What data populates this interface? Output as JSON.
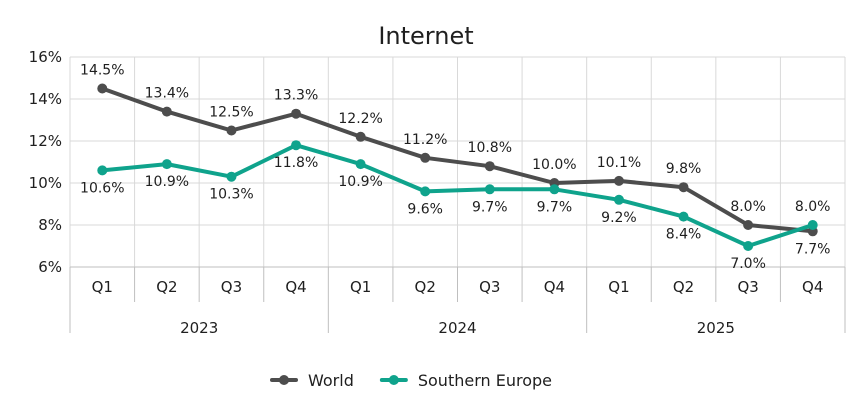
{
  "chart_data": {
    "type": "line",
    "title": "Internet",
    "years": [
      "2023",
      "2024",
      "2025"
    ],
    "categories": [
      "Q1",
      "Q2",
      "Q3",
      "Q4",
      "Q1",
      "Q2",
      "Q3",
      "Q4",
      "Q1",
      "Q2",
      "Q3",
      "Q4"
    ],
    "ylim": [
      6,
      16
    ],
    "yticks": [
      6,
      8,
      10,
      12,
      14,
      16
    ],
    "ytick_labels": [
      "6%",
      "8%",
      "10%",
      "12%",
      "14%",
      "16%"
    ],
    "grid": true,
    "legend_position": "bottom",
    "series": [
      {
        "name": "World",
        "color": "#4d4d4d",
        "values": [
          14.5,
          13.4,
          12.5,
          13.3,
          12.2,
          11.2,
          10.8,
          10.0,
          10.1,
          9.8,
          8.0,
          7.7
        ],
        "labels": [
          "14.5%",
          "13.4%",
          "12.5%",
          "13.3%",
          "12.2%",
          "11.2%",
          "10.8%",
          "10.0%",
          "10.1%",
          "9.8%",
          "8.0%",
          "7.7%"
        ]
      },
      {
        "name": "Southern Europe",
        "color": "#0fa38c",
        "values": [
          10.6,
          10.9,
          10.3,
          11.8,
          10.9,
          9.6,
          9.7,
          9.7,
          9.2,
          8.4,
          7.0,
          8.0
        ],
        "labels": [
          "10.6%",
          "10.9%",
          "10.3%",
          "11.8%",
          "10.9%",
          "9.6%",
          "9.7%",
          "9.7%",
          "9.2%",
          "8.4%",
          "7.0%",
          "8.0%"
        ]
      }
    ]
  }
}
